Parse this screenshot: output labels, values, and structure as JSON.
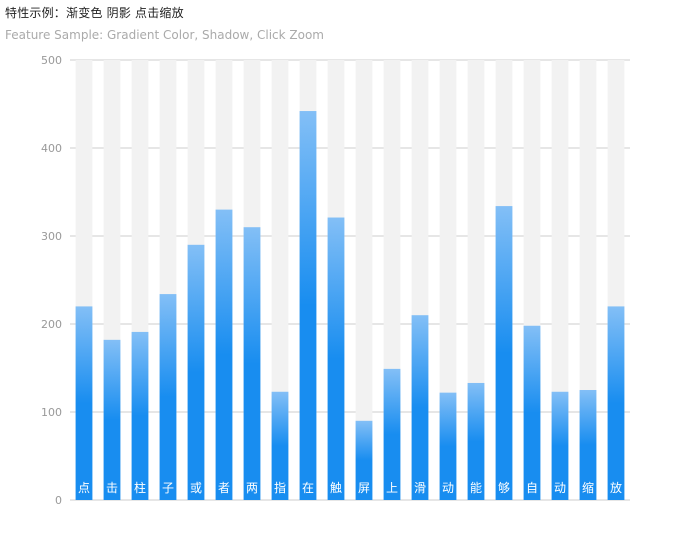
{
  "title": "特性示例：渐变色 阴影 点击缩放",
  "subtitle": "Feature Sample: Gradient Color, Shadow, Click Zoom",
  "colors": {
    "bar_top": "#83bff6",
    "bar_mid": "#188df0",
    "bar_bottom": "#188df0",
    "shadow_bar": "#f2f2f2",
    "grid": "#cccccc",
    "axis_text": "#999999"
  },
  "chart_data": {
    "type": "bar",
    "categories": [
      "点",
      "击",
      "柱",
      "子",
      "或",
      "者",
      "两",
      "指",
      "在",
      "触",
      "屏",
      "上",
      "滑",
      "动",
      "能",
      "够",
      "自",
      "动",
      "缩",
      "放"
    ],
    "values": [
      220,
      182,
      191,
      234,
      290,
      330,
      310,
      123,
      442,
      321,
      90,
      149,
      210,
      122,
      133,
      334,
      198,
      123,
      125,
      220
    ],
    "shadow_value": 500,
    "ylim": [
      0,
      500
    ],
    "yticks": [
      0,
      100,
      200,
      300,
      400,
      500
    ],
    "xlabel": "",
    "ylabel": "",
    "grid": true,
    "category_labels_inside_bars": true
  }
}
